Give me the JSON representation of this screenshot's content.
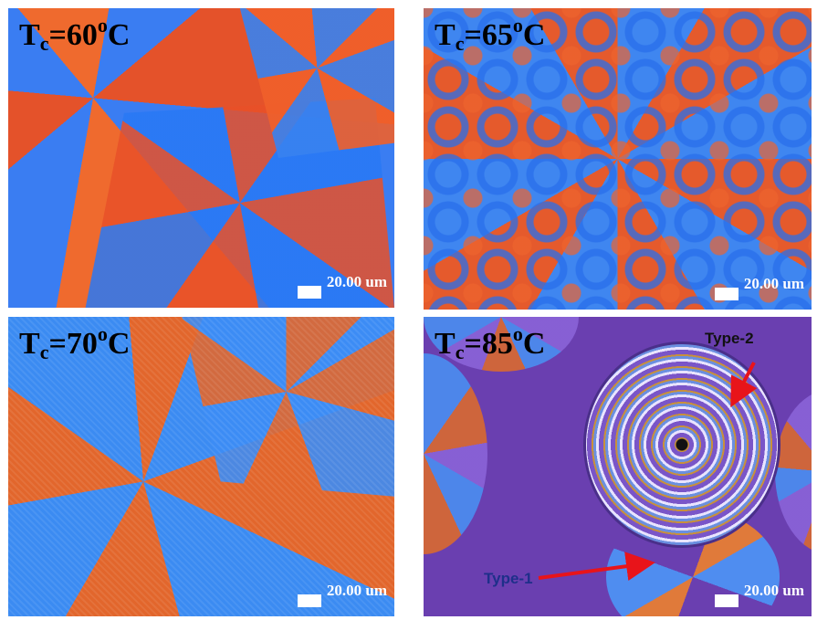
{
  "panels": [
    {
      "label_main": "T",
      "label_sub": "c",
      "label_eq": "=60",
      "label_sup": "o",
      "label_unit": "C",
      "scale_text": "20.00 um"
    },
    {
      "label_main": "T",
      "label_sub": "c",
      "label_eq": "=65",
      "label_sup": "o",
      "label_unit": "C",
      "scale_text": "20.00 um"
    },
    {
      "label_main": "T",
      "label_sub": "c",
      "label_eq": "=70",
      "label_sup": "o",
      "label_unit": "C",
      "scale_text": "20.00 um"
    },
    {
      "label_main": "T",
      "label_sub": "c",
      "label_eq": "=85",
      "label_sup": "o",
      "label_unit": "C",
      "scale_text": "20.00 um",
      "annotations": {
        "type2": "Type-2",
        "type1": "Type-1"
      }
    }
  ],
  "colors": {
    "arrow": "#e8141a",
    "type1_text": "#1e2f8a",
    "type2_text": "#111111",
    "scale_bar": "#ffffff"
  }
}
